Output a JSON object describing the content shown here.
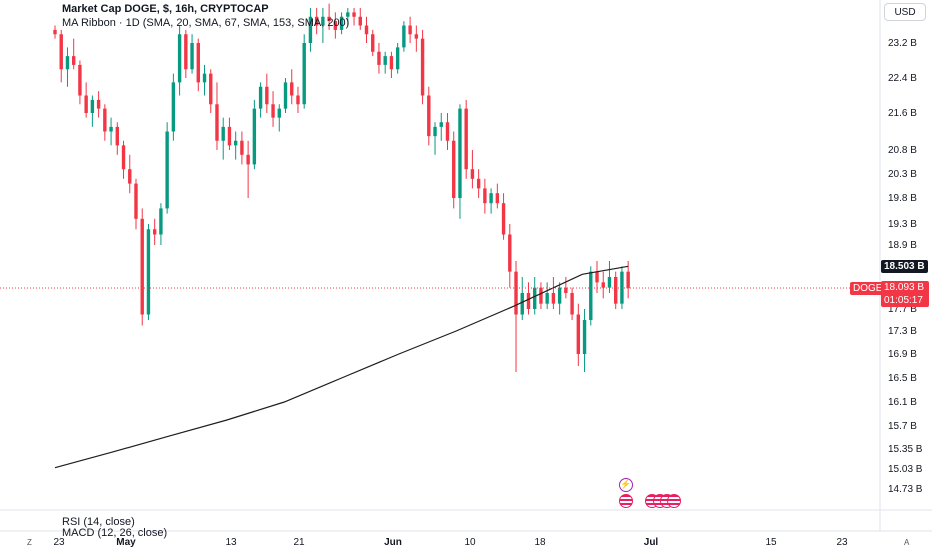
{
  "header": {
    "title": "Market Cap DOGE, $, 16h, CRYPTOCAP",
    "indicator": "MA Ribbon · 1D (SMA, 20, SMA, 67, SMA, 153, SMA, 200)"
  },
  "currency_button": "USD",
  "indicators_below": [
    "RSI (14, close)",
    "MACD (12, 26, close)"
  ],
  "price_tags": {
    "ma_value": "18.503 B",
    "symbol": "DOGE",
    "last_price": "18.093 B",
    "countdown": "01:05:17"
  },
  "corner_buttons": {
    "left": "Z",
    "right": "A"
  },
  "colors": {
    "up": "#089981",
    "down": "#f23645",
    "ma": "#1e1e1e",
    "last_line": "#f23645",
    "event_flash": "#9c27b0",
    "event_flag": "#e91e63"
  },
  "chart_data": {
    "type": "candlestick",
    "title": "Market Cap DOGE, $, 16h, CRYPTOCAP",
    "y_unit": "B USD",
    "y_ticks": [
      23.2,
      22.4,
      21.6,
      20.8,
      20.3,
      19.8,
      19.3,
      18.9,
      17.7,
      17.3,
      16.9,
      16.5,
      16.1,
      15.7,
      15.35,
      15.03,
      14.73
    ],
    "y_tick_labels": [
      "23.2 B",
      "22.4 B",
      "21.6 B",
      "20.8 B",
      "20.3 B",
      "19.8 B",
      "19.3 B",
      "18.9 B",
      "17.7 B",
      "17.3 B",
      "16.9 B",
      "16.5 B",
      "16.1 B",
      "15.7 B",
      "15.35 B",
      "15.03 B",
      "14.73 B"
    ],
    "x_tick_labels": [
      "23",
      "May",
      "13",
      "21",
      "Jun",
      "10",
      "18",
      "Jul",
      "15",
      "23"
    ],
    "grid": false,
    "last_price": 18.093,
    "ma_last": 18.503,
    "candles": [
      [
        23.5,
        23.6,
        23.3,
        23.4
      ],
      [
        23.4,
        23.5,
        22.3,
        22.6
      ],
      [
        22.6,
        23.1,
        22.2,
        22.9
      ],
      [
        22.9,
        23.3,
        22.6,
        22.7
      ],
      [
        22.7,
        22.8,
        21.8,
        22.0
      ],
      [
        22.0,
        22.3,
        21.5,
        21.6
      ],
      [
        21.6,
        22.0,
        21.3,
        21.9
      ],
      [
        21.9,
        22.1,
        21.5,
        21.7
      ],
      [
        21.7,
        21.8,
        21.0,
        21.2
      ],
      [
        21.2,
        21.5,
        20.9,
        21.3
      ],
      [
        21.3,
        21.4,
        20.7,
        20.9
      ],
      [
        20.9,
        21.0,
        20.2,
        20.4
      ],
      [
        20.4,
        20.7,
        19.9,
        20.1
      ],
      [
        20.1,
        20.2,
        19.2,
        19.4
      ],
      [
        19.4,
        19.6,
        17.4,
        17.6
      ],
      [
        17.6,
        19.3,
        17.5,
        19.2
      ],
      [
        19.2,
        19.4,
        18.9,
        19.1
      ],
      [
        19.1,
        19.7,
        18.9,
        19.6
      ],
      [
        19.6,
        21.4,
        19.5,
        21.2
      ],
      [
        21.2,
        22.5,
        21.0,
        22.3
      ],
      [
        22.3,
        23.6,
        22.0,
        23.4
      ],
      [
        23.4,
        23.5,
        22.4,
        22.6
      ],
      [
        22.6,
        23.4,
        22.5,
        23.2
      ],
      [
        23.2,
        23.3,
        22.1,
        22.3
      ],
      [
        22.3,
        22.7,
        22.0,
        22.5
      ],
      [
        22.5,
        22.6,
        21.6,
        21.8
      ],
      [
        21.8,
        22.3,
        20.8,
        21.0
      ],
      [
        21.0,
        21.5,
        20.6,
        21.3
      ],
      [
        21.3,
        21.5,
        20.8,
        20.9
      ],
      [
        20.9,
        21.2,
        20.6,
        21.0
      ],
      [
        21.0,
        21.2,
        20.5,
        20.7
      ],
      [
        20.7,
        21.0,
        19.8,
        20.5
      ],
      [
        20.5,
        21.9,
        20.4,
        21.7
      ],
      [
        21.7,
        22.3,
        21.5,
        22.2
      ],
      [
        22.2,
        22.5,
        21.6,
        21.8
      ],
      [
        21.8,
        22.1,
        21.3,
        21.5
      ],
      [
        21.5,
        21.8,
        21.2,
        21.7
      ],
      [
        21.7,
        22.4,
        21.6,
        22.3
      ],
      [
        22.3,
        22.6,
        21.8,
        22.0
      ],
      [
        22.0,
        22.2,
        21.6,
        21.8
      ],
      [
        21.8,
        23.4,
        21.7,
        23.2
      ],
      [
        23.2,
        24.0,
        23.0,
        23.8
      ],
      [
        23.8,
        24.0,
        23.4,
        23.6
      ],
      [
        23.6,
        24.0,
        23.2,
        23.8
      ],
      [
        23.8,
        24.1,
        23.5,
        23.7
      ],
      [
        23.7,
        23.9,
        23.3,
        23.5
      ],
      [
        23.5,
        23.9,
        23.4,
        23.8
      ],
      [
        23.8,
        24.0,
        23.6,
        23.9
      ],
      [
        23.9,
        24.0,
        23.6,
        23.8
      ],
      [
        23.8,
        24.0,
        23.5,
        23.6
      ],
      [
        23.6,
        23.8,
        23.2,
        23.4
      ],
      [
        23.4,
        23.5,
        22.9,
        23.0
      ],
      [
        23.0,
        23.2,
        22.5,
        22.7
      ],
      [
        22.7,
        23.0,
        22.5,
        22.9
      ],
      [
        22.9,
        23.0,
        22.4,
        22.6
      ],
      [
        22.6,
        23.2,
        22.5,
        23.1
      ],
      [
        23.1,
        23.7,
        23.0,
        23.6
      ],
      [
        23.6,
        23.8,
        23.2,
        23.4
      ],
      [
        23.4,
        23.6,
        23.0,
        23.3
      ],
      [
        23.3,
        23.5,
        21.8,
        22.0
      ],
      [
        22.0,
        22.2,
        20.9,
        21.1
      ],
      [
        21.1,
        21.4,
        20.7,
        21.3
      ],
      [
        21.3,
        21.6,
        21.0,
        21.4
      ],
      [
        21.4,
        21.6,
        20.8,
        21.0
      ],
      [
        21.0,
        21.2,
        19.6,
        19.8
      ],
      [
        19.8,
        21.8,
        19.4,
        21.7
      ],
      [
        21.7,
        21.9,
        20.2,
        20.4
      ],
      [
        20.4,
        20.8,
        20.0,
        20.2
      ],
      [
        20.2,
        20.4,
        19.8,
        20.0
      ],
      [
        20.0,
        20.2,
        19.5,
        19.7
      ],
      [
        19.7,
        20.0,
        19.5,
        19.9
      ],
      [
        19.9,
        20.1,
        19.6,
        19.7
      ],
      [
        19.7,
        19.9,
        19.0,
        19.1
      ],
      [
        19.1,
        19.3,
        18.1,
        18.4
      ],
      [
        18.4,
        18.6,
        16.6,
        17.6
      ],
      [
        17.6,
        18.3,
        17.5,
        18.0
      ],
      [
        18.0,
        18.2,
        17.6,
        17.7
      ],
      [
        17.7,
        18.3,
        17.6,
        18.1
      ],
      [
        18.1,
        18.2,
        17.7,
        17.8
      ],
      [
        17.8,
        18.2,
        17.7,
        18.0
      ],
      [
        18.0,
        18.3,
        17.7,
        17.8
      ],
      [
        17.8,
        18.2,
        17.6,
        18.1
      ],
      [
        18.1,
        18.3,
        17.9,
        18.0
      ],
      [
        18.0,
        18.1,
        17.5,
        17.6
      ],
      [
        17.6,
        17.8,
        16.7,
        16.9
      ],
      [
        16.9,
        17.7,
        16.6,
        17.5
      ],
      [
        17.5,
        18.5,
        17.4,
        18.4
      ],
      [
        18.4,
        18.6,
        18.0,
        18.2
      ],
      [
        18.2,
        18.4,
        17.9,
        18.1
      ],
      [
        18.1,
        18.6,
        18.0,
        18.3
      ],
      [
        18.3,
        18.4,
        17.7,
        17.8
      ],
      [
        17.8,
        18.5,
        17.7,
        18.4
      ],
      [
        18.4,
        18.6,
        17.9,
        18.09
      ]
    ],
    "ma_series": [
      [
        0,
        15.05
      ],
      [
        10,
        15.3
      ],
      [
        20,
        15.55
      ],
      [
        30,
        15.8
      ],
      [
        40,
        16.1
      ],
      [
        50,
        16.5
      ],
      [
        60,
        16.9
      ],
      [
        70,
        17.3
      ],
      [
        80,
        17.75
      ],
      [
        86,
        18.05
      ],
      [
        92,
        18.35
      ],
      [
        100,
        18.5
      ]
    ],
    "events": [
      {
        "type": "flash",
        "label": "⚡"
      },
      {
        "type": "flag-us",
        "count": 4
      }
    ]
  }
}
